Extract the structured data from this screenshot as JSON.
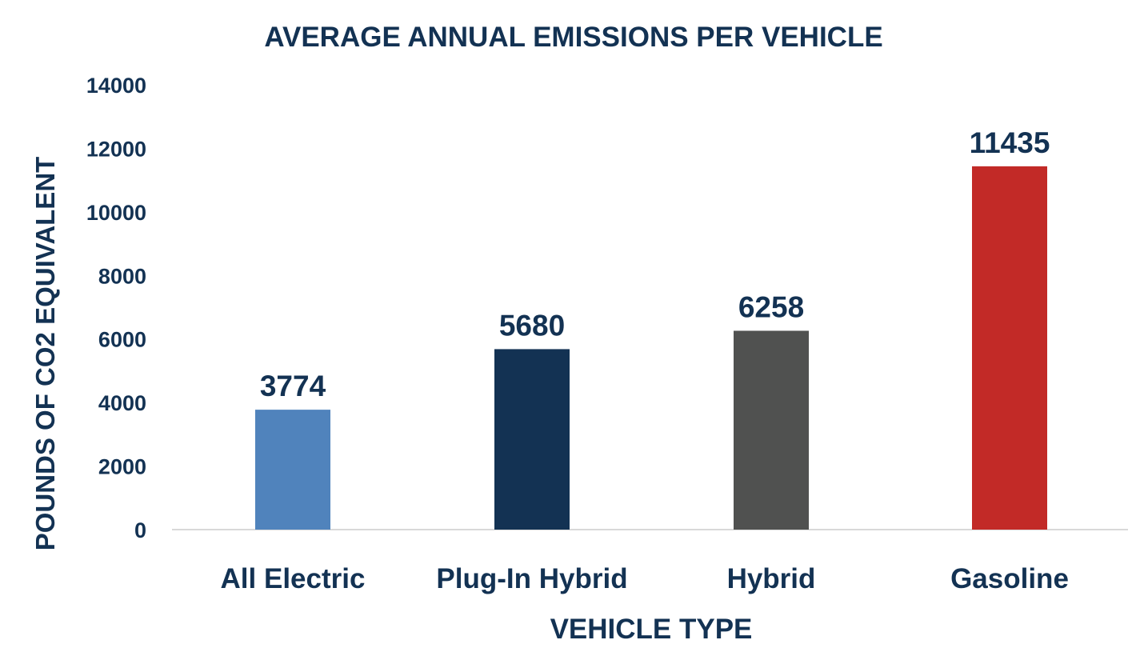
{
  "chart_data": {
    "type": "bar",
    "title": "AVERAGE ANNUAL EMISSIONS PER VEHICLE",
    "xlabel": "VEHICLE TYPE",
    "ylabel": "POUNDS OF CO2 EQUIVALENT",
    "categories": [
      "All Electric",
      "Plug-In Hybrid",
      "Hybrid",
      "Gasoline"
    ],
    "values": [
      3774,
      5680,
      6258,
      11435
    ],
    "data_labels": [
      "3774",
      "5680",
      "6258",
      "11435"
    ],
    "colors": [
      "#5083BC",
      "#133253",
      "#505150",
      "#C22A27"
    ],
    "ylim": [
      0,
      14000
    ],
    "yticks": [
      "0",
      "2000",
      "4000",
      "6000",
      "8000",
      "10000",
      "12000",
      "14000"
    ],
    "grid": false,
    "legend": "none",
    "text_color": "#133253"
  }
}
